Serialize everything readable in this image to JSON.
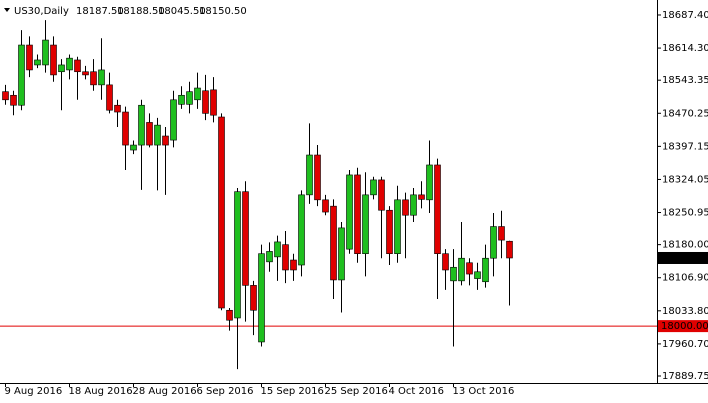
{
  "chart_data": {
    "type": "candlestick",
    "title": "US30,Daily",
    "header_values": [
      "18187.50",
      "18188.50",
      "18045.50",
      "18150.50"
    ],
    "categories": [
      "9 Aug 2016",
      null,
      null,
      null,
      null,
      null,
      null,
      null,
      "18 Aug 2016",
      null,
      null,
      null,
      null,
      null,
      null,
      null,
      "28 Aug 2016",
      null,
      null,
      null,
      null,
      null,
      null,
      null,
      "6 Sep 2016",
      null,
      null,
      null,
      null,
      null,
      null,
      null,
      "15 Sep 2016",
      null,
      null,
      null,
      null,
      null,
      null,
      null,
      "25 Sep 2016",
      null,
      null,
      null,
      null,
      null,
      null,
      null,
      "4 Oct 2016",
      null,
      null,
      null,
      null,
      null,
      null,
      null,
      "13 Oct 2016",
      null,
      null,
      null,
      null,
      null,
      null,
      null
    ],
    "series": [
      {
        "name": "open",
        "values": [
          18518,
          18510,
          18488,
          18621,
          18577,
          18577,
          18621,
          18562,
          18566,
          18588,
          18562,
          18562,
          18533,
          18533,
          18488,
          18473,
          18389,
          18400,
          18450,
          18400,
          18420,
          18411,
          18490,
          18490,
          18500,
          18520,
          18522,
          18462,
          18035,
          18018,
          18297,
          18090,
          17965,
          18142,
          18153,
          18180,
          18146,
          18135,
          18290,
          18378,
          18279,
          18265,
          18102,
          18170,
          18334,
          18160,
          18290,
          18323,
          18256,
          18160,
          18279,
          18245,
          18290,
          18279,
          18356,
          18160,
          18100,
          18100,
          18140,
          18105,
          18098,
          18150,
          18220,
          18187.5
        ]
      },
      {
        "name": "high",
        "values": [
          18533,
          18520,
          18654,
          18640,
          18600,
          18676,
          18640,
          18590,
          18600,
          18595,
          18575,
          18590,
          18636,
          18560,
          18500,
          18485,
          18410,
          18500,
          18470,
          18460,
          18440,
          18520,
          18530,
          18540,
          18560,
          18555,
          18550,
          18470,
          18040,
          18305,
          18320,
          18100,
          18180,
          18185,
          18200,
          18210,
          18160,
          18300,
          18448,
          18400,
          18290,
          18280,
          18230,
          18345,
          18350,
          18340,
          18330,
          18330,
          18265,
          18310,
          18295,
          18305,
          18320,
          18410,
          18370,
          18170,
          18170,
          18230,
          18150,
          18140,
          18180,
          18250,
          18255,
          18188.5
        ]
      },
      {
        "name": "low",
        "values": [
          18489,
          18466,
          18477,
          18550,
          18570,
          18560,
          18540,
          18477,
          18545,
          18500,
          18545,
          18520,
          18500,
          18470,
          18440,
          18345,
          18380,
          18301,
          18395,
          18300,
          18290,
          18395,
          18480,
          18470,
          18480,
          18455,
          18450,
          18035,
          17990,
          17905,
          18010,
          17980,
          17955,
          18120,
          18100,
          18095,
          18100,
          18110,
          18270,
          18265,
          18245,
          18060,
          18030,
          18160,
          18140,
          18110,
          18280,
          18150,
          18135,
          18140,
          18150,
          18230,
          18260,
          18250,
          18060,
          18080,
          17955,
          18090,
          18090,
          18080,
          18085,
          18110,
          18150,
          18045.5
        ]
      },
      {
        "name": "close",
        "values": [
          18500,
          18488,
          18621,
          18566,
          18588,
          18632,
          18555,
          18577,
          18592,
          18562,
          18555,
          18533,
          18566,
          18477,
          18473,
          18400,
          18400,
          18488,
          18400,
          18444,
          18400,
          18500,
          18510,
          18518,
          18526,
          18470,
          18466,
          18040,
          18013,
          18297,
          18090,
          18035,
          18160,
          18165,
          18186,
          18124,
          18124,
          18290,
          18378,
          18279,
          18252,
          18102,
          18217,
          18334,
          18160,
          18290,
          18323,
          18256,
          18160,
          18279,
          18245,
          18290,
          18280,
          18356,
          18160,
          18124,
          18130,
          18150,
          18115,
          18120,
          18150,
          18220,
          18190,
          18150.5
        ]
      }
    ],
    "up_color": "#1fbf1f",
    "down_color": "#e00000",
    "ylim": [
      17874.3,
      18720.5
    ],
    "yticks": [
      {
        "value": 18687.4,
        "label": "18687.40"
      },
      {
        "value": 18614.3,
        "label": "18614.30"
      },
      {
        "value": 18543.35,
        "label": "18543.35"
      },
      {
        "value": 18470.25,
        "label": "18470.25"
      },
      {
        "value": 18397.15,
        "label": "18397.15"
      },
      {
        "value": 18324.05,
        "label": "18324.05"
      },
      {
        "value": 18250.95,
        "label": "18250.95"
      },
      {
        "value": 18180,
        "label": "18180.00"
      },
      {
        "value": 18106.9,
        "label": "18106.90"
      },
      {
        "value": 18033.8,
        "label": "18033.80"
      },
      {
        "value": 17960.7,
        "label": "17960.70"
      },
      {
        "value": 17889.75,
        "label": "17889.75"
      }
    ],
    "current_price": {
      "value": 18150.5,
      "label": "18150.50"
    },
    "level_line": {
      "value": 18000,
      "label": "18000.00",
      "color": "#e00000"
    }
  }
}
